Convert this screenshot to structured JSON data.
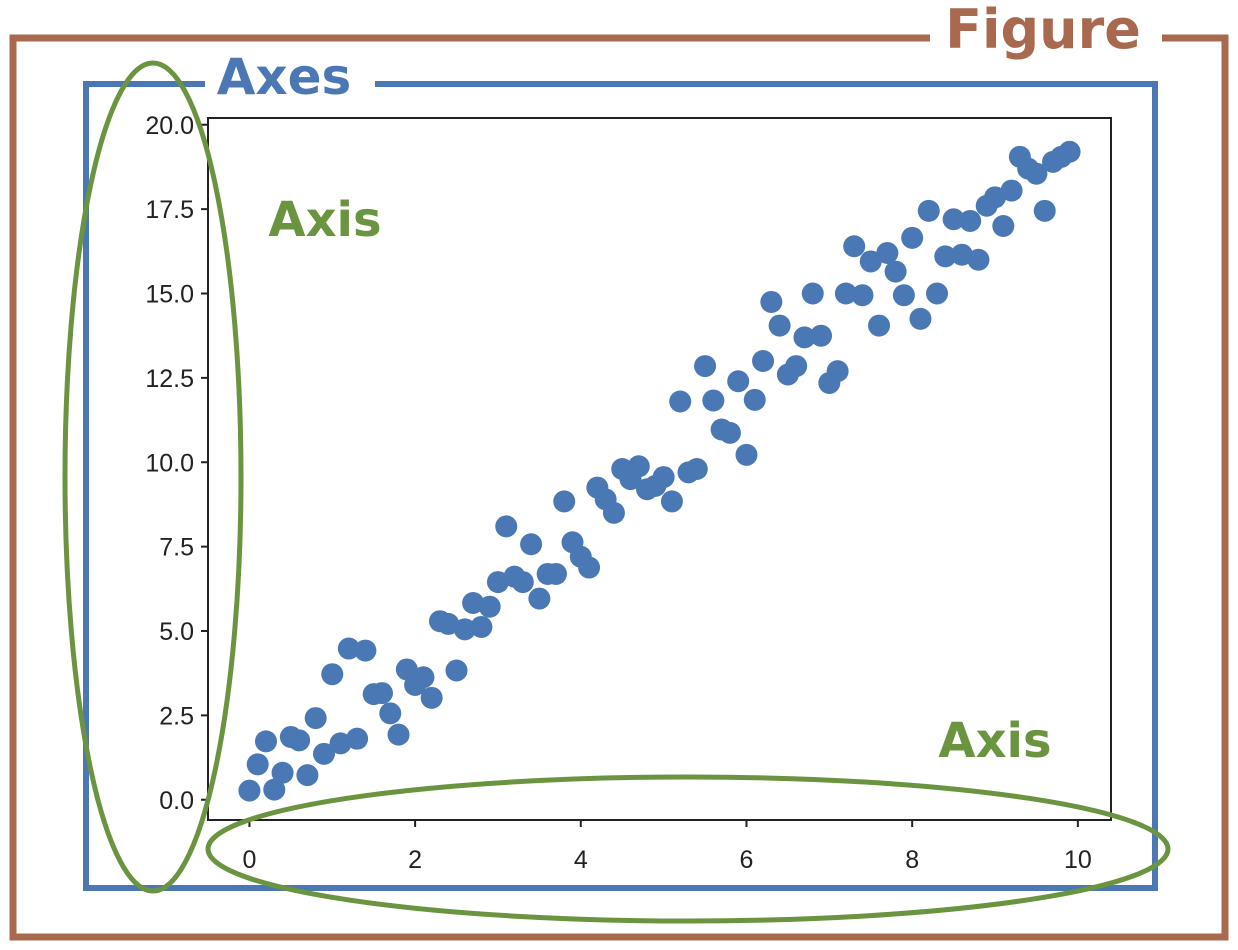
{
  "annotations": {
    "figure_label": "Figure",
    "axes_label": "Axes",
    "yaxis_label": "Axis",
    "xaxis_label": "Axis"
  },
  "colors": {
    "figure": "#a8694e",
    "axes": "#4b78b4",
    "axis": "#6a943f",
    "points": "#4a78b4"
  },
  "chart_data": {
    "type": "scatter",
    "title": "",
    "xlabel": "",
    "ylabel": "",
    "xlim": [
      -0.5,
      10.4
    ],
    "ylim": [
      -0.6,
      20.2
    ],
    "xticks": [
      "0",
      "2",
      "4",
      "6",
      "8",
      "10"
    ],
    "yticks": [
      "0.0",
      "2.5",
      "5.0",
      "7.5",
      "10.0",
      "12.5",
      "15.0",
      "17.5",
      "20.0"
    ],
    "grid": false,
    "series": [
      {
        "points": [
          [
            0.0,
            0.27
          ],
          [
            0.1,
            1.05
          ],
          [
            0.2,
            1.73
          ],
          [
            0.3,
            0.3
          ],
          [
            0.4,
            0.8
          ],
          [
            0.5,
            1.86
          ],
          [
            0.6,
            1.76
          ],
          [
            0.7,
            0.73
          ],
          [
            0.8,
            2.42
          ],
          [
            0.9,
            1.36
          ],
          [
            1.0,
            3.72
          ],
          [
            1.1,
            1.67
          ],
          [
            1.2,
            4.48
          ],
          [
            1.3,
            1.81
          ],
          [
            1.4,
            4.42
          ],
          [
            1.5,
            3.13
          ],
          [
            1.6,
            3.16
          ],
          [
            1.7,
            2.56
          ],
          [
            1.8,
            1.93
          ],
          [
            1.9,
            3.86
          ],
          [
            2.0,
            3.4
          ],
          [
            2.1,
            3.63
          ],
          [
            2.2,
            3.02
          ],
          [
            2.3,
            5.29
          ],
          [
            2.4,
            5.21
          ],
          [
            2.5,
            3.83
          ],
          [
            2.6,
            5.05
          ],
          [
            2.7,
            5.83
          ],
          [
            2.8,
            5.12
          ],
          [
            2.9,
            5.72
          ],
          [
            3.0,
            6.45
          ],
          [
            3.1,
            8.1
          ],
          [
            3.2,
            6.61
          ],
          [
            3.3,
            6.45
          ],
          [
            3.4,
            7.57
          ],
          [
            3.5,
            5.96
          ],
          [
            3.6,
            6.69
          ],
          [
            3.7,
            6.69
          ],
          [
            3.8,
            8.84
          ],
          [
            3.9,
            7.63
          ],
          [
            4.0,
            7.2
          ],
          [
            4.1,
            6.88
          ],
          [
            4.2,
            9.25
          ],
          [
            4.3,
            8.9
          ],
          [
            4.4,
            8.5
          ],
          [
            4.5,
            9.8
          ],
          [
            4.6,
            9.5
          ],
          [
            4.7,
            9.88
          ],
          [
            4.8,
            9.2
          ],
          [
            4.9,
            9.3
          ],
          [
            5.0,
            9.56
          ],
          [
            5.1,
            8.84
          ],
          [
            5.2,
            11.8
          ],
          [
            5.3,
            9.7
          ],
          [
            5.4,
            9.8
          ],
          [
            5.5,
            12.85
          ],
          [
            5.6,
            11.83
          ],
          [
            5.7,
            10.97
          ],
          [
            5.8,
            10.87
          ],
          [
            5.9,
            12.4
          ],
          [
            6.0,
            10.22
          ],
          [
            6.1,
            11.85
          ],
          [
            6.2,
            13.0
          ],
          [
            6.3,
            14.75
          ],
          [
            6.4,
            14.05
          ],
          [
            6.5,
            12.6
          ],
          [
            6.6,
            12.85
          ],
          [
            6.7,
            13.7
          ],
          [
            6.8,
            15.0
          ],
          [
            6.9,
            13.75
          ],
          [
            7.0,
            12.35
          ],
          [
            7.1,
            12.7
          ],
          [
            7.2,
            15.0
          ],
          [
            7.3,
            16.4
          ],
          [
            7.4,
            14.95
          ],
          [
            7.5,
            15.95
          ],
          [
            7.6,
            14.05
          ],
          [
            7.7,
            16.2
          ],
          [
            7.8,
            15.65
          ],
          [
            7.9,
            14.95
          ],
          [
            8.0,
            16.65
          ],
          [
            8.1,
            14.25
          ],
          [
            8.2,
            17.45
          ],
          [
            8.3,
            15.0
          ],
          [
            8.4,
            16.1
          ],
          [
            8.5,
            17.2
          ],
          [
            8.6,
            16.15
          ],
          [
            8.7,
            17.15
          ],
          [
            8.8,
            16.0
          ],
          [
            8.9,
            17.6
          ],
          [
            9.0,
            17.85
          ],
          [
            9.1,
            17.0
          ],
          [
            9.2,
            18.05
          ],
          [
            9.3,
            19.05
          ],
          [
            9.4,
            18.7
          ],
          [
            9.5,
            18.55
          ],
          [
            9.6,
            17.45
          ],
          [
            9.7,
            18.9
          ],
          [
            9.8,
            19.05
          ],
          [
            9.9,
            19.2
          ]
        ]
      }
    ]
  }
}
